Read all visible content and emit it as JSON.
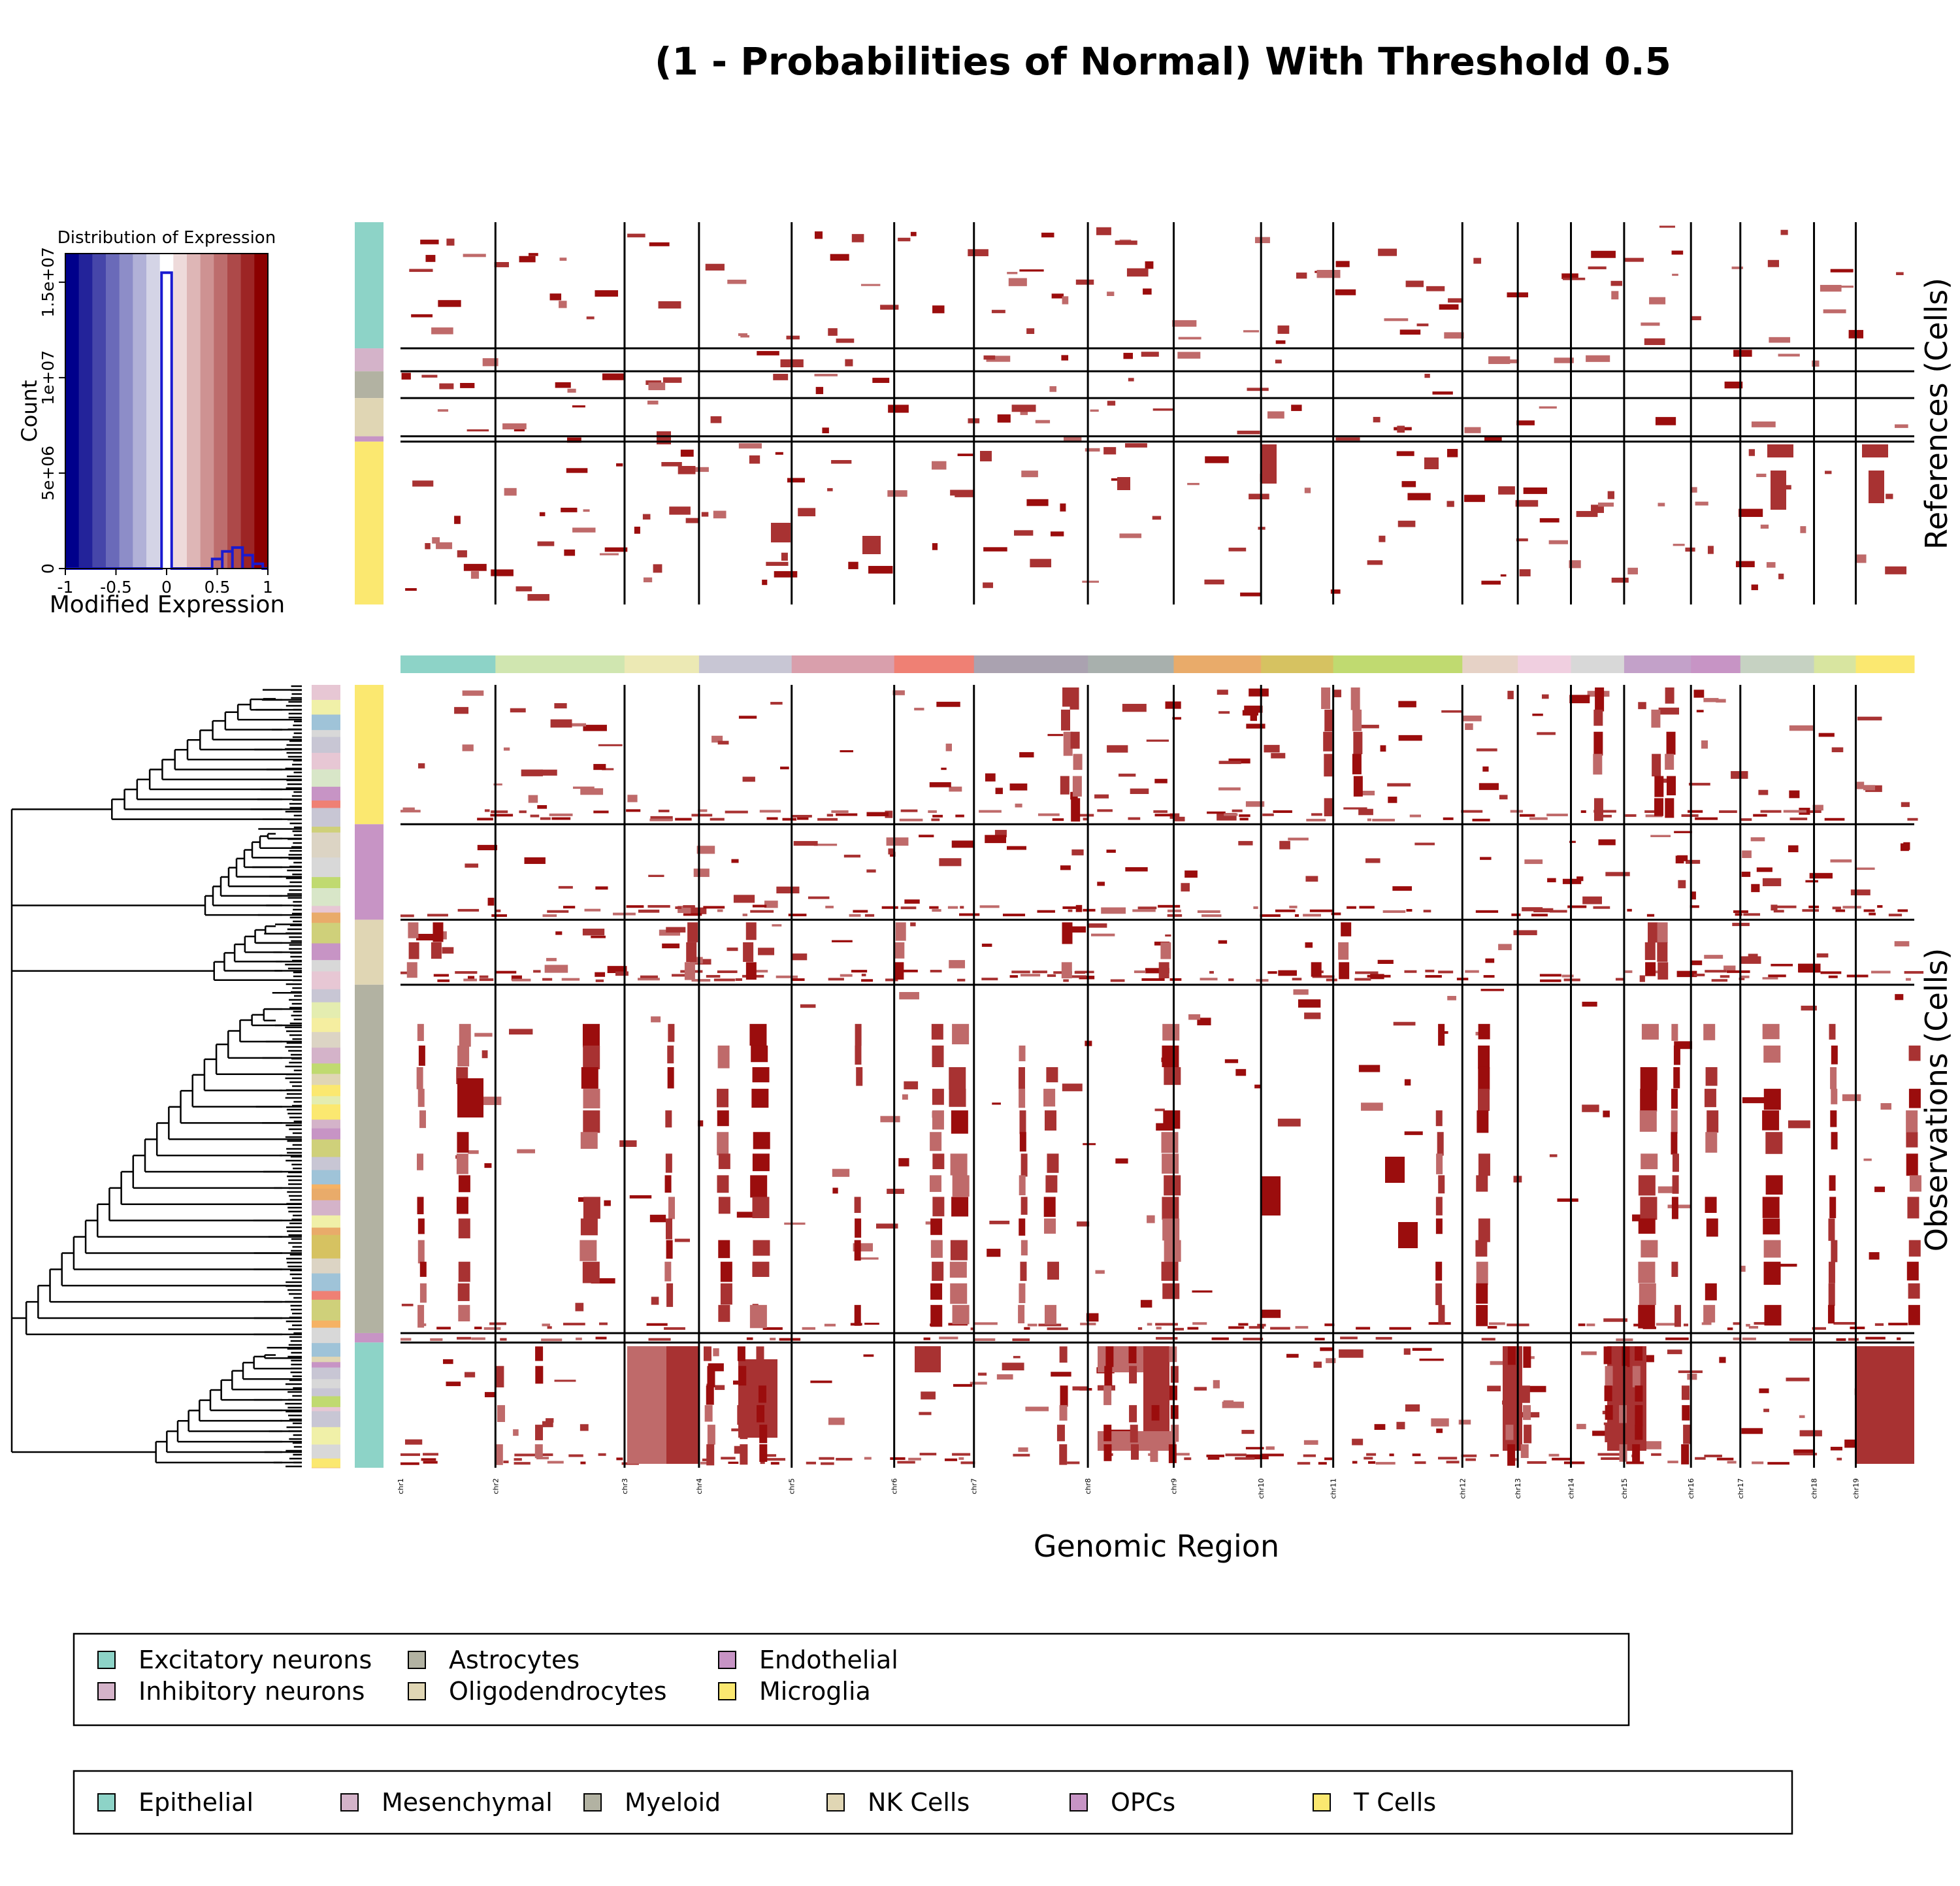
{
  "chart_data": {
    "type": "heatmap",
    "title": "(1 - Probabilities of Normal) With Threshold 0.5",
    "xlabel": "Genomic Region",
    "references_label": "References (Cells)",
    "observations_label": "Observations (Cells)",
    "chromosomes": [
      {
        "label": "chr1",
        "color": "#8dd3c7",
        "weight": 1.25
      },
      {
        "label": "chr2",
        "color": "#d0e6b0",
        "weight": 1.7
      },
      {
        "label": "chr3",
        "color": "#ece9b4",
        "weight": 0.98
      },
      {
        "label": "chr4",
        "color": "#c8c6d4",
        "weight": 1.22
      },
      {
        "label": "chr5",
        "color": "#d99fac",
        "weight": 1.35
      },
      {
        "label": "chr6",
        "color": "#ef8074",
        "weight": 1.05
      },
      {
        "label": "chr7",
        "color": "#aaa2b0",
        "weight": 1.5
      },
      {
        "label": "chr8",
        "color": "#a8b0ad",
        "weight": 1.13
      },
      {
        "label": "chr9",
        "color": "#e9ab6a",
        "weight": 1.15
      },
      {
        "label": "chr10",
        "color": "#d6c261",
        "weight": 0.95
      },
      {
        "label": "chr11",
        "color": "#c0da70",
        "weight": 1.7
      },
      {
        "label": "chr12",
        "color": "#e6d2c6",
        "weight": 0.73
      },
      {
        "label": "chr13",
        "color": "#f0cfe0",
        "weight": 0.7
      },
      {
        "label": "chr14",
        "color": "#d8d8d8",
        "weight": 0.7
      },
      {
        "label": "chr15",
        "color": "#c3a1c9",
        "weight": 0.88
      },
      {
        "label": "chr16",
        "color": "#c794c5",
        "weight": 0.65
      },
      {
        "label": "chr17",
        "color": "#c6d2c2",
        "weight": 0.97
      },
      {
        "label": "chr18",
        "color": "#d8e5a0",
        "weight": 0.55
      },
      {
        "label": "chr19",
        "color": "#fbe870",
        "weight": 0.77
      }
    ],
    "reference_groups": [
      {
        "name": "Excitatory neurons",
        "color": "#8dd3c7",
        "fraction": 0.33
      },
      {
        "name": "Inhibitory neurons",
        "color": "#d4b3c9",
        "fraction": 0.06
      },
      {
        "name": "Astrocytes",
        "color": "#b2b2a2",
        "fraction": 0.07
      },
      {
        "name": "Oligodendrocytes",
        "color": "#e0d6b4",
        "fraction": 0.1
      },
      {
        "name": "Endothelial",
        "color": "#c794c5",
        "fraction": 0.014
      },
      {
        "name": "Microglia",
        "color": "#fbe870",
        "fraction": 0.426
      }
    ],
    "observation_groups": [
      {
        "name": "T Cells",
        "color": "#fbe870",
        "fraction": 0.178
      },
      {
        "name": "OPCs",
        "color": "#c794c5",
        "fraction": 0.122
      },
      {
        "name": "NK Cells",
        "color": "#e0d6b4",
        "fraction": 0.083
      },
      {
        "name": "Myeloid",
        "color": "#b2b2a2",
        "fraction": 0.445
      },
      {
        "name": "Endothelial",
        "color": "#c794c5",
        "fraction": 0.012
      },
      {
        "name": "Epithelial",
        "color": "#8dd3c7",
        "fraction": 0.16
      }
    ],
    "color_key": {
      "title": "Distribution of Expression",
      "xlabel": "Modified Expression",
      "ylabel": "Count",
      "xticks": [
        "-1",
        "-0.5",
        "0",
        "0.5",
        "1"
      ],
      "yticks": [
        "0",
        "5e+06",
        "1e+07",
        "1.5e+07"
      ],
      "xlim": [
        -1,
        1
      ],
      "ylim": [
        0,
        16500000
      ],
      "histogram": [
        {
          "x0": -0.05,
          "x1": 0.05,
          "count": 15500000
        },
        {
          "x0": 0.45,
          "x1": 0.55,
          "count": 500000
        },
        {
          "x0": 0.55,
          "x1": 0.65,
          "count": 900000
        },
        {
          "x0": 0.65,
          "x1": 0.75,
          "count": 1100000
        },
        {
          "x0": 0.75,
          "x1": 0.85,
          "count": 700000
        },
        {
          "x0": 0.85,
          "x1": 0.95,
          "count": 250000
        }
      ],
      "gradient": [
        "#00008b",
        "#23239a",
        "#4646a9",
        "#6a6ab9",
        "#8d8dc8",
        "#b1b1d7",
        "#d4d4e6",
        "#ffffff",
        "#eedada",
        "#deb6b6",
        "#ce9292",
        "#bd6d6d",
        "#ad4949",
        "#9d2525",
        "#8b0000"
      ]
    },
    "legends": [
      {
        "entries": [
          {
            "label": "Excitatory neurons",
            "color": "#8dd3c7"
          },
          {
            "label": "Inhibitory neurons",
            "color": "#d4b3c9"
          },
          {
            "label": "Astrocytes",
            "color": "#b2b2a2"
          },
          {
            "label": "Oligodendrocytes",
            "color": "#e0d6b4"
          },
          {
            "label": "Endothelial",
            "color": "#c794c5"
          },
          {
            "label": "Microglia",
            "color": "#fbe870"
          }
        ]
      },
      {
        "entries": [
          {
            "label": "Epithelial",
            "color": "#8dd3c7"
          },
          {
            "label": "Mesenchymal",
            "color": "#d4b3c9"
          },
          {
            "label": "Myeloid",
            "color": "#b2b2a2"
          },
          {
            "label": "NK Cells",
            "color": "#e0d6b4"
          },
          {
            "label": "OPCs",
            "color": "#c794c5"
          },
          {
            "label": "T Cells",
            "color": "#fbe870"
          }
        ]
      }
    ]
  }
}
